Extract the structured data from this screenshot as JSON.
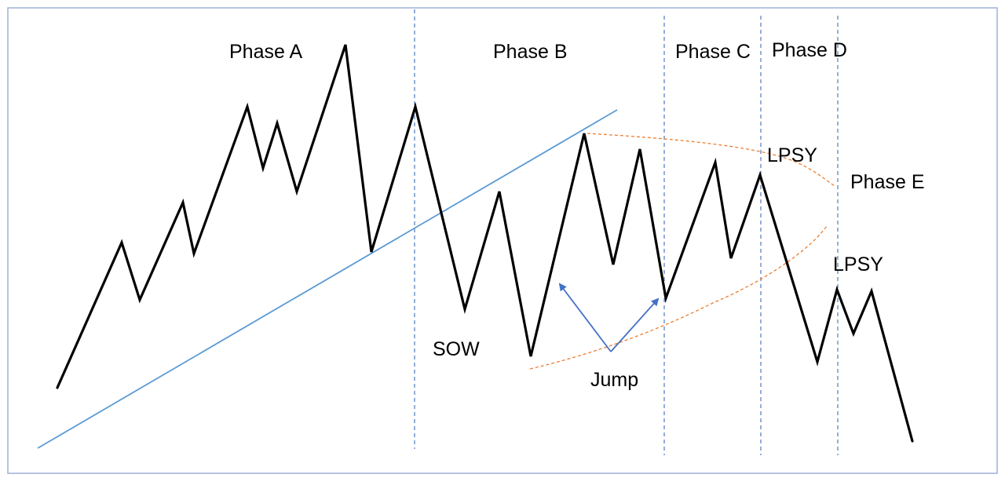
{
  "diagram": {
    "phase_labels": {
      "phase_a": "Phase A",
      "phase_b": "Phase B",
      "phase_c": "Phase C",
      "phase_d": "Phase D",
      "phase_e": "Phase E"
    },
    "event_labels": {
      "sow": "SOW",
      "jump": "Jump",
      "lpsy_1": "LPSY",
      "lpsy_2": "LPSY"
    },
    "colors": {
      "price_line": "#000000",
      "trend_line": "#5b9bd5",
      "phase_divider": "#5b84c4",
      "channel": "#ed7d31",
      "arrow": "#4472c4",
      "frame": "#9db1d8"
    }
  }
}
